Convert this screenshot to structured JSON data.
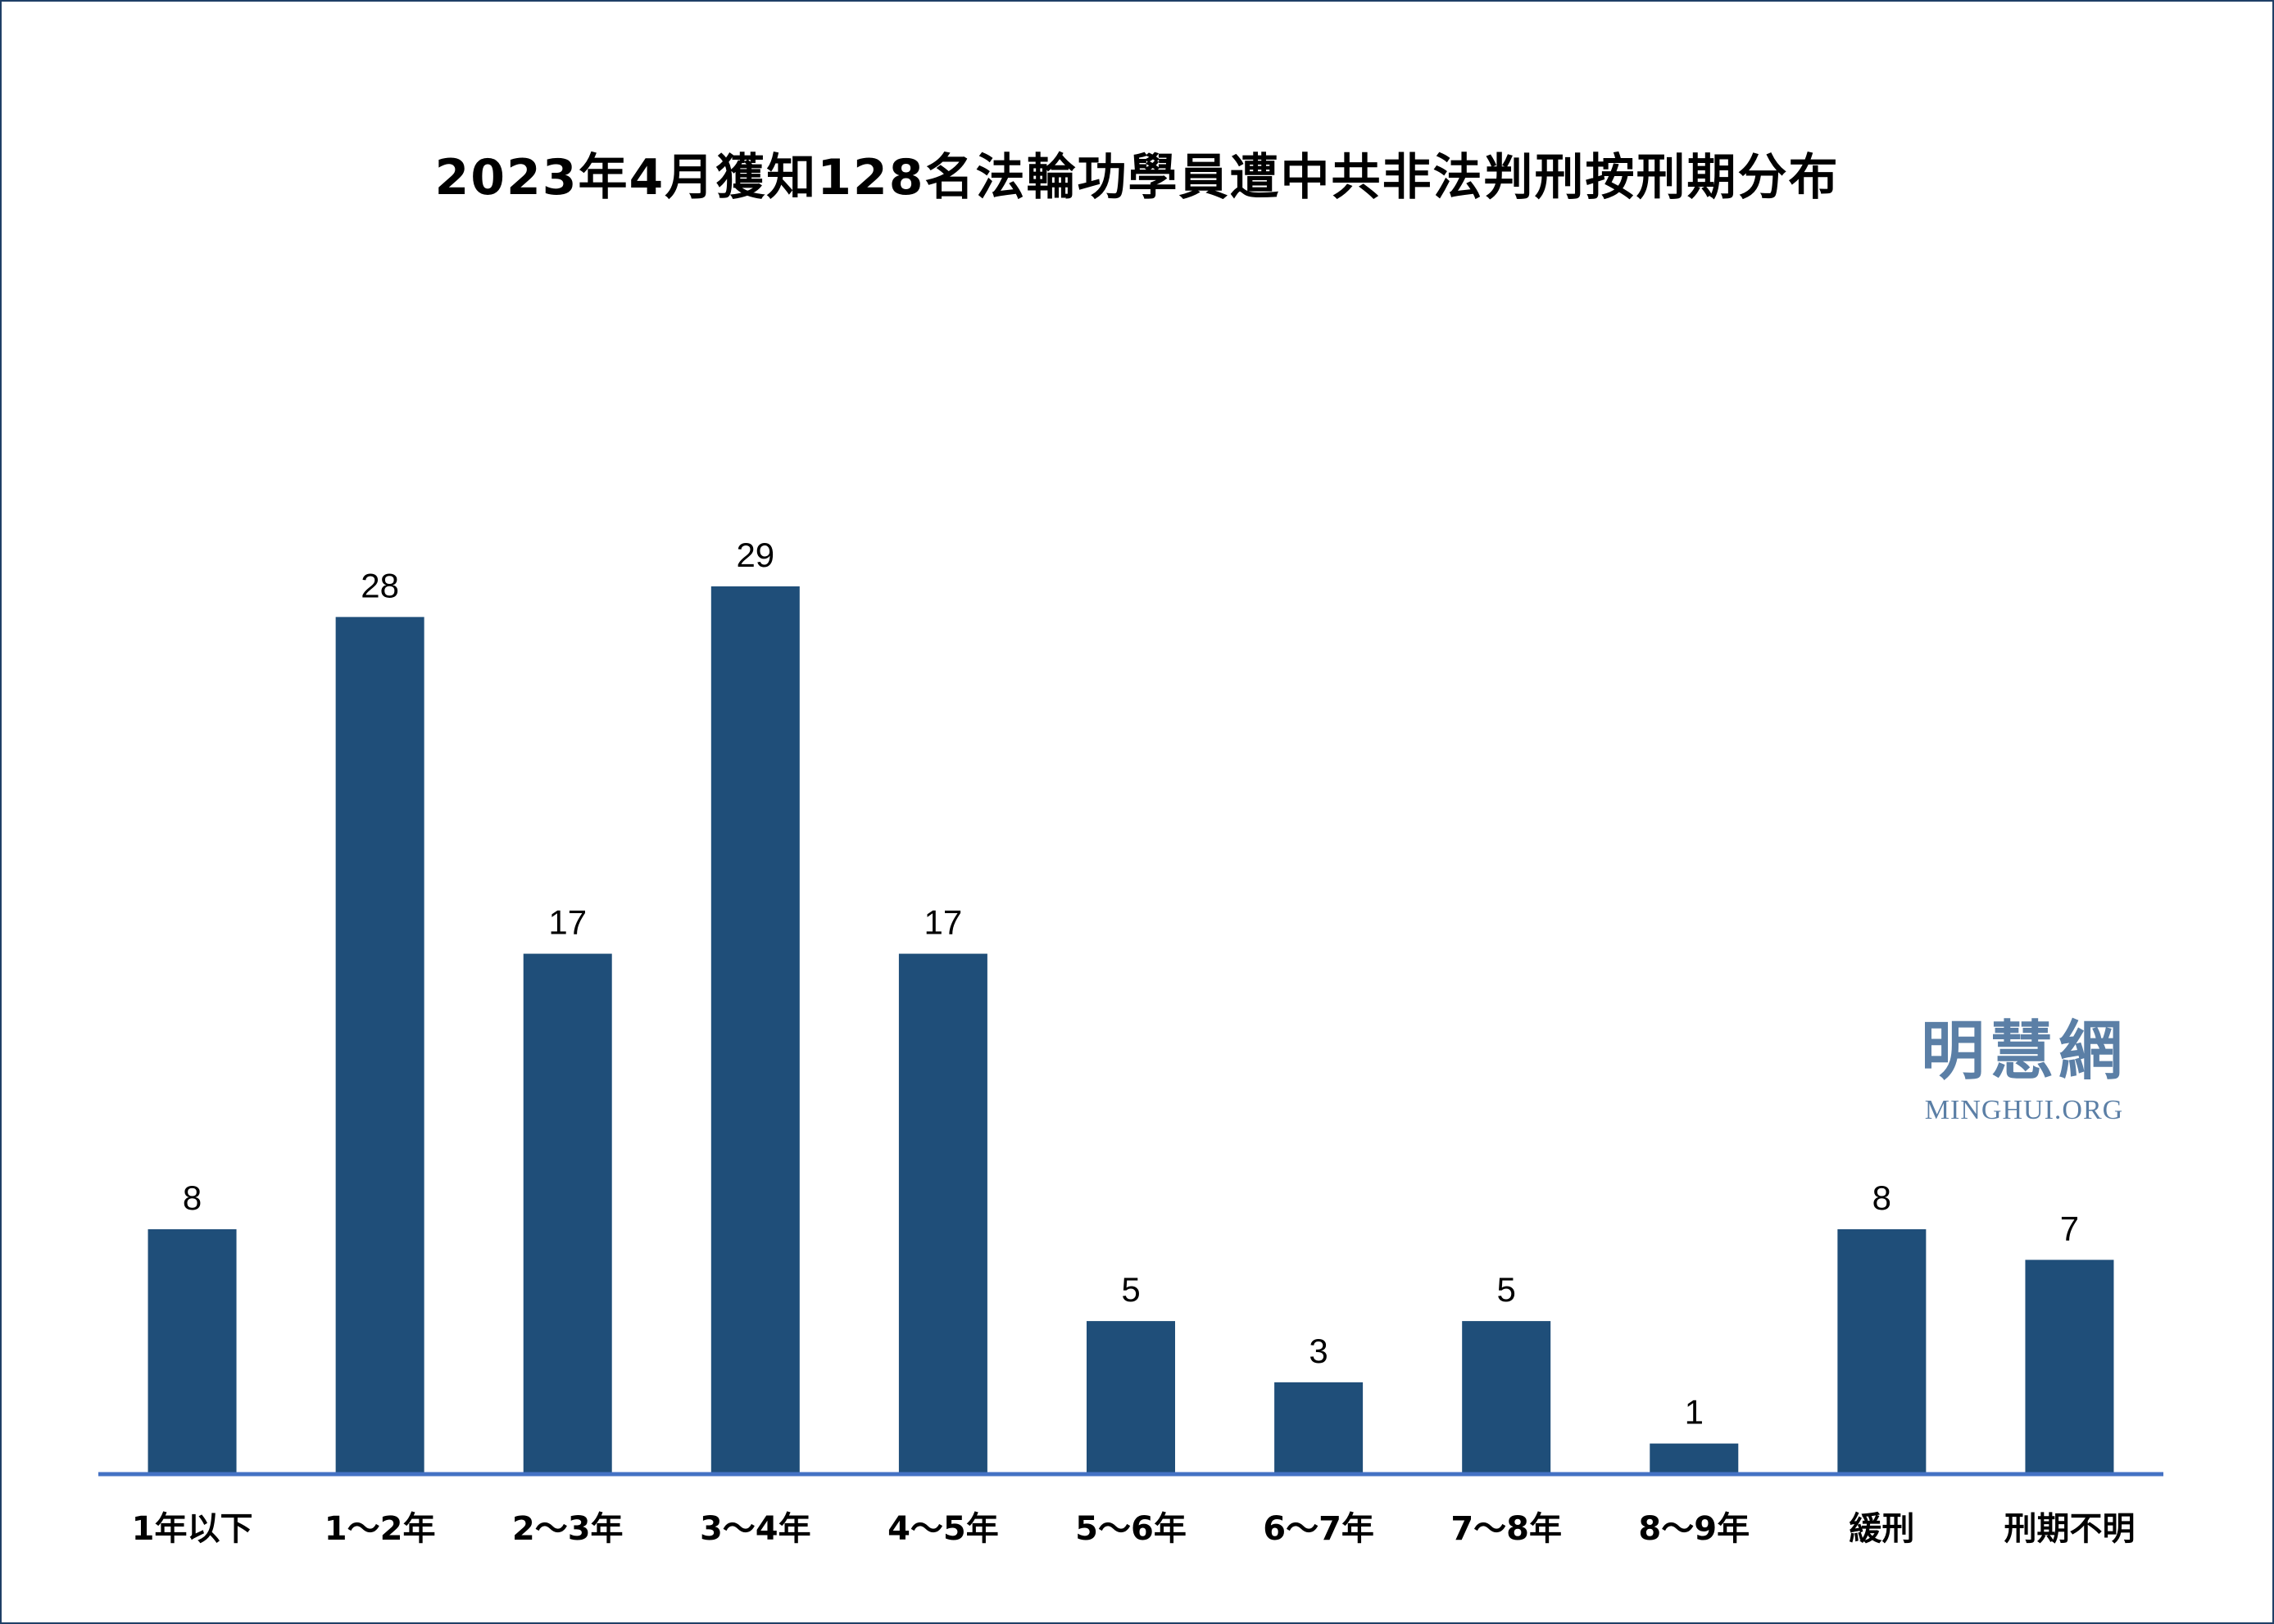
{
  "colors": {
    "bar": "#1f4e79",
    "axis": "#4472c4",
    "watermark": "#5b7fa6",
    "frame": "#1f3f66"
  },
  "watermark": {
    "cn": "明慧網",
    "en": "MINGHUI.ORG"
  },
  "chart_data": {
    "type": "bar",
    "title": "2023年4月獲知128名法輪功學員遭中共非法判刑按刑期分布",
    "xlabel": "",
    "ylabel": "",
    "categories": [
      "1年以下",
      "1～2年",
      "2～3年",
      "3～4年",
      "4～5年",
      "5～6年",
      "6～7年",
      "7～8年",
      "8～9年",
      "緩刑",
      "刑期不明"
    ],
    "values": [
      8,
      28,
      17,
      29,
      17,
      5,
      3,
      5,
      1,
      8,
      7
    ],
    "data_labels": [
      "8",
      "28",
      "17",
      "29",
      "17",
      "5",
      "3",
      "5",
      "1",
      "8",
      "7"
    ],
    "ylim": [
      0,
      29
    ],
    "grid": false,
    "legend": "none"
  }
}
